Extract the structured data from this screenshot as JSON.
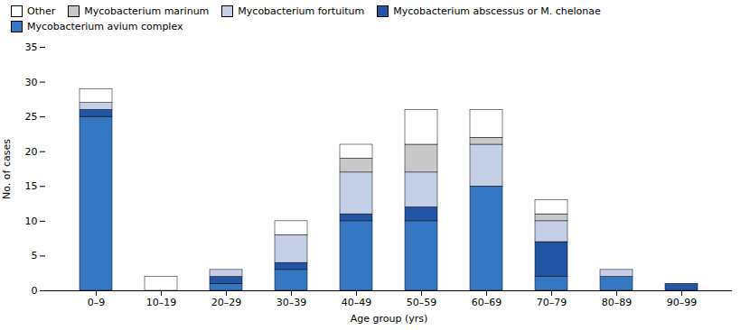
{
  "chart_data": {
    "type": "bar",
    "stacked": true,
    "xlabel": "Age group (yrs)",
    "ylabel": "No. of cases",
    "categories": [
      "0–9",
      "10–19",
      "20–29",
      "30–39",
      "40–49",
      "50–59",
      "60–69",
      "70–79",
      "80–89",
      "90–99"
    ],
    "series": [
      {
        "name": "Mycobacterium avium complex",
        "color": "#3677c2",
        "values": [
          25,
          0,
          1,
          3,
          10,
          10,
          15,
          2,
          2,
          0
        ]
      },
      {
        "name": "Mycobacterium abscessus or M. chelonae",
        "color": "#2255a4",
        "values": [
          1,
          0,
          1,
          1,
          1,
          2,
          0,
          5,
          0,
          1
        ]
      },
      {
        "name": "Mycobacterium fortuitum",
        "color": "#c5cfe8",
        "values": [
          1,
          0,
          1,
          4,
          6,
          5,
          6,
          3,
          1,
          0
        ]
      },
      {
        "name": "Mycobacterium marinum",
        "color": "#c8c8c8",
        "values": [
          0,
          0,
          0,
          0,
          2,
          4,
          1,
          1,
          0,
          0
        ]
      },
      {
        "name": "Other",
        "color": "#ffffff",
        "values": [
          2,
          2,
          0,
          2,
          2,
          5,
          4,
          2,
          0,
          0
        ]
      }
    ],
    "ylim": [
      0,
      35
    ],
    "yticks": [
      0,
      5,
      10,
      15,
      20,
      25,
      30,
      35
    ],
    "grid": false,
    "legend": "upper left"
  }
}
